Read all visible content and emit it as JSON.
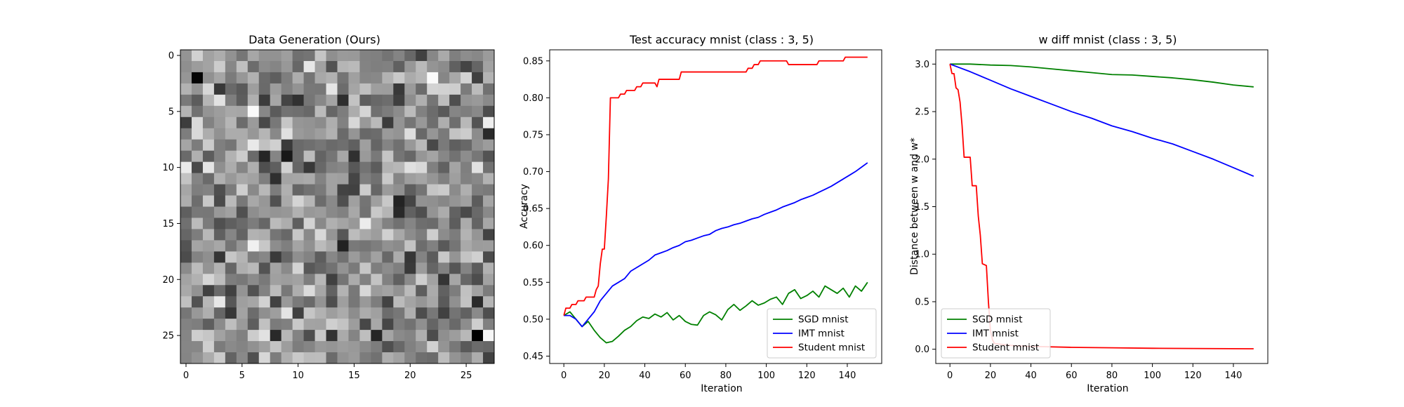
{
  "panels": {
    "image": {
      "title": "Data Generation (Ours)",
      "x_ticks": [
        "0",
        "5",
        "10",
        "15",
        "20",
        "25"
      ],
      "y_ticks": [
        "0",
        "5",
        "10",
        "15",
        "20",
        "25"
      ]
    },
    "accuracy": {
      "title": "Test accuracy mnist (class : 3, 5)",
      "xlabel": "Iteration",
      "ylabel": "Accuracy",
      "x_ticks": [
        "0",
        "20",
        "40",
        "60",
        "80",
        "100",
        "120",
        "140"
      ],
      "y_ticks": [
        "0.45",
        "0.50",
        "0.55",
        "0.60",
        "0.65",
        "0.70",
        "0.75",
        "0.80",
        "0.85"
      ],
      "legend": [
        "SGD mnist",
        "IMT mnist",
        "Student mnist"
      ]
    },
    "wdiff": {
      "title": "w diff mnist (class : 3, 5)",
      "xlabel": "Iteration",
      "ylabel": "Distance between w and w*",
      "x_ticks": [
        "0",
        "20",
        "40",
        "60",
        "80",
        "100",
        "120",
        "140"
      ],
      "y_ticks": [
        "0.0",
        "0.5",
        "1.0",
        "1.5",
        "2.0",
        "2.5",
        "3.0"
      ],
      "legend": [
        "SGD mnist",
        "IMT mnist",
        "Student mnist"
      ]
    }
  },
  "chart_data": [
    {
      "type": "heatmap",
      "title": "Data Generation (Ours)",
      "rows": 28,
      "cols": 28,
      "colormap": "gray",
      "value_range": [
        0,
        1
      ],
      "note_values": "random-noise image; cell brightness values approximate"
    },
    {
      "type": "line",
      "title": "Test accuracy mnist (class : 3, 5)",
      "xlabel": "Iteration",
      "ylabel": "Accuracy",
      "xlim": [
        -7,
        157
      ],
      "ylim": [
        0.44,
        0.865
      ],
      "grid": false,
      "legend_position": "lower-right",
      "series": [
        {
          "name": "SGD mnist",
          "color": "#008000",
          "points": [
            [
              0,
              0.505
            ],
            [
              3,
              0.51
            ],
            [
              6,
              0.5
            ],
            [
              9,
              0.49
            ],
            [
              12,
              0.497
            ],
            [
              15,
              0.485
            ],
            [
              18,
              0.475
            ],
            [
              21,
              0.468
            ],
            [
              24,
              0.47
            ],
            [
              27,
              0.477
            ],
            [
              30,
              0.485
            ],
            [
              33,
              0.49
            ],
            [
              36,
              0.498
            ],
            [
              39,
              0.503
            ],
            [
              42,
              0.501
            ],
            [
              45,
              0.507
            ],
            [
              48,
              0.503
            ],
            [
              51,
              0.509
            ],
            [
              54,
              0.499
            ],
            [
              57,
              0.505
            ],
            [
              60,
              0.497
            ],
            [
              63,
              0.493
            ],
            [
              66,
              0.492
            ],
            [
              69,
              0.505
            ],
            [
              72,
              0.51
            ],
            [
              75,
              0.506
            ],
            [
              78,
              0.499
            ],
            [
              81,
              0.513
            ],
            [
              84,
              0.52
            ],
            [
              87,
              0.512
            ],
            [
              90,
              0.518
            ],
            [
              93,
              0.525
            ],
            [
              96,
              0.519
            ],
            [
              99,
              0.522
            ],
            [
              102,
              0.527
            ],
            [
              105,
              0.53
            ],
            [
              108,
              0.52
            ],
            [
              111,
              0.535
            ],
            [
              114,
              0.54
            ],
            [
              117,
              0.528
            ],
            [
              120,
              0.532
            ],
            [
              123,
              0.538
            ],
            [
              126,
              0.53
            ],
            [
              129,
              0.545
            ],
            [
              132,
              0.54
            ],
            [
              135,
              0.535
            ],
            [
              138,
              0.542
            ],
            [
              141,
              0.53
            ],
            [
              144,
              0.545
            ],
            [
              147,
              0.538
            ],
            [
              150,
              0.55
            ]
          ]
        },
        {
          "name": "IMT mnist",
          "color": "#0000ff",
          "points": [
            [
              0,
              0.505
            ],
            [
              3,
              0.505
            ],
            [
              6,
              0.5
            ],
            [
              9,
              0.49
            ],
            [
              12,
              0.5
            ],
            [
              15,
              0.51
            ],
            [
              18,
              0.525
            ],
            [
              21,
              0.535
            ],
            [
              24,
              0.545
            ],
            [
              27,
              0.55
            ],
            [
              30,
              0.555
            ],
            [
              33,
              0.565
            ],
            [
              36,
              0.57
            ],
            [
              39,
              0.575
            ],
            [
              42,
              0.58
            ],
            [
              45,
              0.587
            ],
            [
              48,
              0.59
            ],
            [
              51,
              0.593
            ],
            [
              54,
              0.597
            ],
            [
              57,
              0.6
            ],
            [
              60,
              0.605
            ],
            [
              63,
              0.607
            ],
            [
              66,
              0.61
            ],
            [
              69,
              0.613
            ],
            [
              72,
              0.615
            ],
            [
              75,
              0.62
            ],
            [
              78,
              0.623
            ],
            [
              81,
              0.625
            ],
            [
              84,
              0.628
            ],
            [
              87,
              0.63
            ],
            [
              90,
              0.633
            ],
            [
              93,
              0.636
            ],
            [
              96,
              0.638
            ],
            [
              99,
              0.642
            ],
            [
              102,
              0.645
            ],
            [
              105,
              0.648
            ],
            [
              108,
              0.652
            ],
            [
              111,
              0.655
            ],
            [
              114,
              0.658
            ],
            [
              117,
              0.662
            ],
            [
              120,
              0.665
            ],
            [
              123,
              0.668
            ],
            [
              126,
              0.672
            ],
            [
              129,
              0.676
            ],
            [
              132,
              0.68
            ],
            [
              135,
              0.685
            ],
            [
              138,
              0.69
            ],
            [
              141,
              0.695
            ],
            [
              144,
              0.7
            ],
            [
              147,
              0.706
            ],
            [
              150,
              0.712
            ]
          ]
        },
        {
          "name": "Student mnist",
          "color": "#ff0000",
          "points": [
            [
              0,
              0.505
            ],
            [
              1,
              0.515
            ],
            [
              3,
              0.515
            ],
            [
              4,
              0.52
            ],
            [
              6,
              0.52
            ],
            [
              7,
              0.525
            ],
            [
              10,
              0.525
            ],
            [
              11,
              0.53
            ],
            [
              15,
              0.53
            ],
            [
              16,
              0.54
            ],
            [
              17,
              0.545
            ],
            [
              18,
              0.575
            ],
            [
              19,
              0.595
            ],
            [
              20,
              0.595
            ],
            [
              21,
              0.64
            ],
            [
              22,
              0.69
            ],
            [
              23,
              0.8
            ],
            [
              27,
              0.8
            ],
            [
              28,
              0.805
            ],
            [
              30,
              0.805
            ],
            [
              31,
              0.81
            ],
            [
              35,
              0.81
            ],
            [
              36,
              0.815
            ],
            [
              38,
              0.815
            ],
            [
              39,
              0.82
            ],
            [
              45,
              0.82
            ],
            [
              46,
              0.815
            ],
            [
              47,
              0.825
            ],
            [
              57,
              0.825
            ],
            [
              58,
              0.835
            ],
            [
              90,
              0.835
            ],
            [
              91,
              0.84
            ],
            [
              93,
              0.84
            ],
            [
              94,
              0.845
            ],
            [
              96,
              0.845
            ],
            [
              97,
              0.85
            ],
            [
              110,
              0.85
            ],
            [
              111,
              0.845
            ],
            [
              125,
              0.845
            ],
            [
              126,
              0.85
            ],
            [
              138,
              0.85
            ],
            [
              139,
              0.855
            ],
            [
              150,
              0.855
            ]
          ]
        }
      ]
    },
    {
      "type": "line",
      "title": "w diff mnist (class : 3, 5)",
      "xlabel": "Iteration",
      "ylabel": "Distance between w and w*",
      "xlim": [
        -7,
        157
      ],
      "ylim": [
        -0.15,
        3.15
      ],
      "grid": false,
      "legend_position": "lower-left",
      "series": [
        {
          "name": "SGD mnist",
          "color": "#008000",
          "points": [
            [
              0,
              3.0
            ],
            [
              10,
              3.0
            ],
            [
              20,
              2.99
            ],
            [
              30,
              2.985
            ],
            [
              40,
              2.97
            ],
            [
              50,
              2.95
            ],
            [
              60,
              2.93
            ],
            [
              70,
              2.91
            ],
            [
              80,
              2.89
            ],
            [
              90,
              2.885
            ],
            [
              100,
              2.87
            ],
            [
              110,
              2.855
            ],
            [
              120,
              2.835
            ],
            [
              130,
              2.81
            ],
            [
              140,
              2.78
            ],
            [
              150,
              2.76
            ]
          ]
        },
        {
          "name": "IMT mnist",
          "color": "#0000ff",
          "points": [
            [
              0,
              3.0
            ],
            [
              10,
              2.92
            ],
            [
              20,
              2.83
            ],
            [
              30,
              2.74
            ],
            [
              40,
              2.66
            ],
            [
              50,
              2.58
            ],
            [
              60,
              2.5
            ],
            [
              70,
              2.43
            ],
            [
              80,
              2.35
            ],
            [
              90,
              2.29
            ],
            [
              100,
              2.22
            ],
            [
              110,
              2.16
            ],
            [
              120,
              2.08
            ],
            [
              130,
              2.0
            ],
            [
              140,
              1.91
            ],
            [
              150,
              1.82
            ]
          ]
        },
        {
          "name": "Student mnist",
          "color": "#ff0000",
          "points": [
            [
              0,
              3.0
            ],
            [
              1,
              2.9
            ],
            [
              2,
              2.9
            ],
            [
              3,
              2.75
            ],
            [
              4,
              2.73
            ],
            [
              5,
              2.6
            ],
            [
              6,
              2.35
            ],
            [
              7,
              2.02
            ],
            [
              10,
              2.02
            ],
            [
              11,
              1.72
            ],
            [
              13,
              1.72
            ],
            [
              14,
              1.4
            ],
            [
              15,
              1.2
            ],
            [
              16,
              0.9
            ],
            [
              18,
              0.88
            ],
            [
              19,
              0.5
            ],
            [
              20,
              0.2
            ],
            [
              21,
              0.1
            ],
            [
              22,
              0.06
            ],
            [
              30,
              0.04
            ],
            [
              40,
              0.03
            ],
            [
              60,
              0.02
            ],
            [
              80,
              0.015
            ],
            [
              100,
              0.01
            ],
            [
              120,
              0.008
            ],
            [
              150,
              0.005
            ]
          ]
        }
      ]
    }
  ]
}
